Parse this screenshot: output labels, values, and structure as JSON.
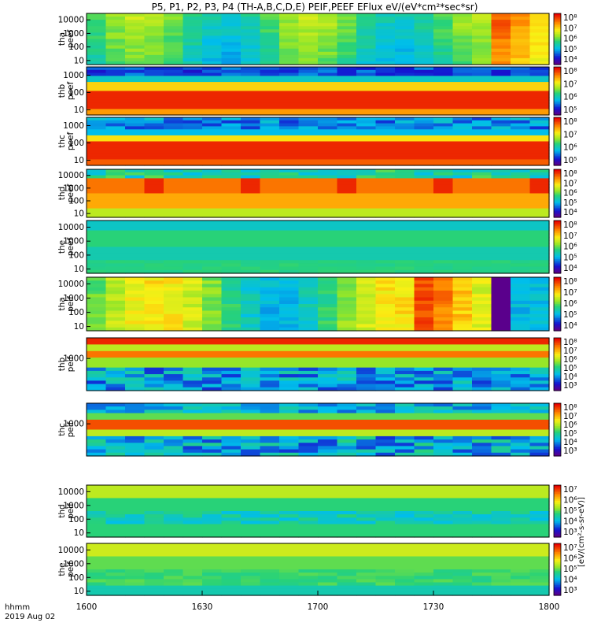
{
  "chart_data": {
    "type": "heatmap",
    "title": "P5, P1, P2, P3, P4 (TH-A,B,C,D,E) PEIF,PEEF EFlux eV/(eV*cm²*sec*sr)",
    "x_ticks": [
      "1600",
      "1630",
      "1700",
      "1730",
      "1800"
    ],
    "x_range": [
      "1600",
      "1800"
    ],
    "x_units": "hhmm",
    "date_label": "2019 Aug 02",
    "colorbar_title": "[eV/(cm²-s-sr-eV)]",
    "energy_scale": "log",
    "panels": [
      {
        "probe": "tha",
        "label": [
          "tha",
          "peef"
        ],
        "species": "electron",
        "yticks": [
          "10000",
          "1000",
          "100",
          "10"
        ],
        "ylim": [
          5,
          30000
        ],
        "cbar_ticks": [
          "10⁸",
          "10⁷",
          "10⁶",
          "10⁵",
          "10⁴"
        ]
      },
      {
        "probe": "thb",
        "label": [
          "thb",
          "peef"
        ],
        "species": "electron",
        "yticks": [
          "1000",
          "100",
          "10"
        ],
        "ylim": [
          5,
          3000
        ],
        "cbar_ticks": [
          "10⁸",
          "10⁷",
          "10⁶",
          "10⁵"
        ]
      },
      {
        "probe": "thc",
        "label": [
          "thc",
          "peef"
        ],
        "species": "electron",
        "yticks": [
          "1000",
          "100",
          "10"
        ],
        "ylim": [
          5,
          3000
        ],
        "cbar_ticks": [
          "10⁸",
          "10⁷",
          "10⁶",
          "10⁵"
        ]
      },
      {
        "probe": "thd",
        "label": [
          "thd",
          "peef"
        ],
        "species": "electron",
        "yticks": [
          "10000",
          "1000",
          "100",
          "10"
        ],
        "ylim": [
          5,
          30000
        ],
        "cbar_ticks": [
          "10⁸",
          "10⁷",
          "10⁶",
          "10⁵",
          "10⁴"
        ]
      },
      {
        "probe": "the",
        "label": [
          "the",
          "peef"
        ],
        "species": "electron",
        "yticks": [
          "10000",
          "1000",
          "100",
          "10"
        ],
        "ylim": [
          5,
          30000
        ],
        "cbar_ticks": [
          "10⁸",
          "10⁷",
          "10⁶",
          "10⁵",
          "10⁴"
        ]
      },
      {
        "probe": "tha",
        "label": [
          "tha",
          "peif"
        ],
        "species": "ion",
        "yticks": [
          "10000",
          "1000",
          "100",
          "10"
        ],
        "ylim": [
          5,
          30000
        ],
        "cbar_ticks": [
          "10⁸",
          "10⁷",
          "10⁶",
          "10⁵",
          "10⁴"
        ]
      },
      {
        "probe": "thb",
        "label": [
          "thb",
          "peif"
        ],
        "species": "ion",
        "yticks": [
          "1000"
        ],
        "ylim": [
          5,
          30000
        ],
        "cbar_ticks": [
          "10⁸",
          "10⁷",
          "10⁶",
          "10⁵",
          "10⁴",
          "10³"
        ]
      },
      {
        "probe": "thc",
        "label": [
          "thc",
          "peif"
        ],
        "species": "ion",
        "yticks": [
          "1000"
        ],
        "ylim": [
          5,
          30000
        ],
        "cbar_ticks": [
          "10⁸",
          "10⁷",
          "10⁶",
          "10⁵",
          "10⁴",
          "10³"
        ]
      },
      {
        "probe": "thd",
        "label": [
          "thd",
          "peif"
        ],
        "species": "ion",
        "yticks": [
          "10000",
          "1000",
          "100",
          "10"
        ],
        "ylim": [
          5,
          30000
        ],
        "cbar_ticks": [
          "10⁷",
          "10⁶",
          "10⁵",
          "10⁴",
          "10³"
        ]
      },
      {
        "probe": "the",
        "label": [
          "the",
          "peif"
        ],
        "species": "ion",
        "yticks": [
          "10000",
          "1000",
          "100",
          "10"
        ],
        "ylim": [
          5,
          30000
        ],
        "cbar_ticks": [
          "10⁷",
          "10⁶",
          "10⁵",
          "10⁴",
          "10³"
        ]
      }
    ]
  }
}
